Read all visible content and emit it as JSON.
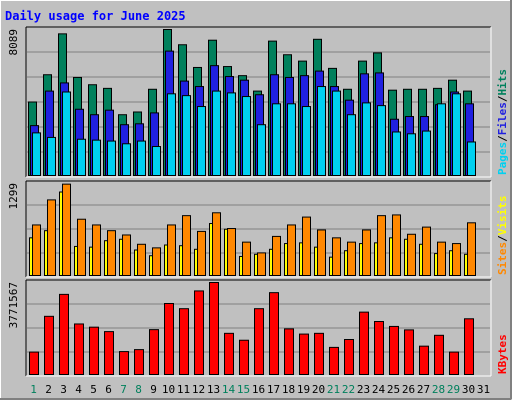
{
  "chart_data": {
    "type": "bar",
    "title": "Daily usage for June 2025",
    "x": [
      "1",
      "2",
      "3",
      "4",
      "5",
      "6",
      "7",
      "8",
      "9",
      "10",
      "11",
      "12",
      "13",
      "14",
      "15",
      "16",
      "17",
      "18",
      "19",
      "20",
      "21",
      "22",
      "23",
      "24",
      "25",
      "26",
      "27",
      "28",
      "29",
      "30",
      "31"
    ],
    "weekend_days": [
      1,
      7,
      8,
      14,
      15,
      21,
      22,
      28,
      29
    ],
    "panels": [
      {
        "id": "top",
        "ylabel": "8089",
        "ymax": 8089,
        "right_labels": [
          "Pages",
          "Files",
          "Hits"
        ],
        "series": [
          {
            "name": "Hits",
            "color": "#00805c",
            "values": [
              4100,
              5600,
              7850,
              5450,
              5050,
              4850,
              3400,
              3550,
              4800,
              8089,
              7250,
              6000,
              7500,
              6050,
              5550,
              4700,
              7450,
              6700,
              6350,
              7550,
              5950,
              4800,
              6350,
              6800,
              4750,
              4800,
              4800,
              4850,
              5300,
              4700,
              null
            ]
          },
          {
            "name": "Files",
            "color": "#2020e0",
            "values": [
              2800,
              4700,
              5150,
              3700,
              3400,
              3650,
              2850,
              2900,
              3500,
              6900,
              5250,
              4950,
              6100,
              5500,
              5300,
              4500,
              5600,
              5450,
              5550,
              5800,
              4950,
              4200,
              5650,
              5700,
              3150,
              3300,
              3300,
              3950,
              4650,
              4000,
              null
            ]
          },
          {
            "name": "Pages",
            "color": "#00d0f0",
            "values": [
              2400,
              2150,
              4650,
              2050,
              2000,
              1950,
              1800,
              1950,
              1650,
              4550,
              4450,
              3850,
              4700,
              4600,
              4400,
              2850,
              4000,
              4000,
              3850,
              4950,
              4700,
              3400,
              4050,
              3900,
              2450,
              2350,
              2500,
              4000,
              4550,
              1900,
              null
            ]
          }
        ]
      },
      {
        "id": "middle",
        "ylabel": "1299",
        "ymax": 1299,
        "right_labels": [
          "Sites",
          "Visits"
        ],
        "series": [
          {
            "name": "Visits",
            "color": "#ffff00",
            "values": [
              540,
              640,
              1180,
              420,
              410,
              500,
              520,
              370,
              290,
              440,
              430,
              380,
              740,
              660,
              280,
              310,
              380,
              460,
              470,
              410,
              270,
              360,
              460,
              470,
              540,
              520,
              450,
              320,
              360,
              310,
              null
            ]
          },
          {
            "name": "Sites",
            "color": "#ff8800",
            "values": [
              720,
              1070,
              1290,
              800,
              720,
              640,
              580,
              450,
              400,
              720,
              850,
              630,
              890,
              670,
              480,
              330,
              560,
              720,
              830,
              650,
              540,
              480,
              650,
              850,
              860,
              590,
              690,
              480,
              460,
              750,
              null
            ]
          }
        ]
      },
      {
        "id": "bottom",
        "ylabel": "3771567",
        "ymax": 3771567,
        "right_labels": [
          "KBytes"
        ],
        "series": [
          {
            "name": "KBytes",
            "color": "#ff0000",
            "values": [
              950000,
              2400000,
              3290000,
              2090000,
              1960000,
              1780000,
              970000,
              1050000,
              1860000,
              2920000,
              2710000,
              3430000,
              3771567,
              1710000,
              1430000,
              2710000,
              3360000,
              1890000,
              1680000,
              1710000,
              1140000,
              1460000,
              2570000,
              2190000,
              1990000,
              1850000,
              1190000,
              1630000,
              950000,
              2300000,
              null
            ]
          }
        ]
      }
    ]
  },
  "colors": {
    "background": "#c0c0c0",
    "plot_background": "#c0c0c0",
    "title_color": "#0000ff",
    "grid": "#808080",
    "weekend_label": "#00805c",
    "weekday_label": "#000000"
  }
}
